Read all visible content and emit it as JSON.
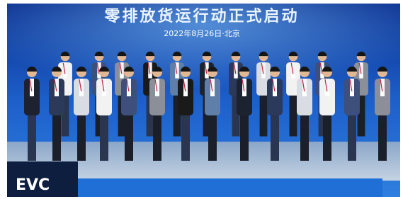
{
  "backdrop": {
    "title": "零排放货运行动正式启动",
    "date": "2022年8月26日·北京"
  },
  "logo": "EVC"
}
